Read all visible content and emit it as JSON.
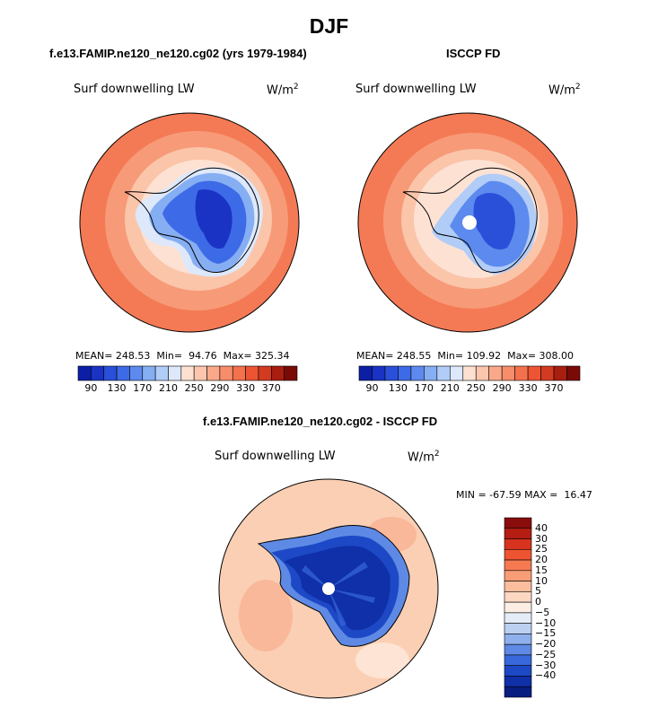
{
  "title": "DJF",
  "panels": [
    {
      "id": "model",
      "header": "f.e13.FAMIP.ne120_ne120.cg02 (yrs 1979-1984)",
      "left_label": "Surf downwelling LW",
      "units": "W/m",
      "units_exp": "2",
      "stats": "MEAN= 248.53  Min=  94.76  Max= 325.34"
    },
    {
      "id": "obs",
      "header": "ISCCP FD",
      "left_label": "Surf downwelling LW",
      "units": "W/m",
      "units_exp": "2",
      "stats": "MEAN= 248.55  Min= 109.92  Max= 308.00"
    },
    {
      "id": "diff",
      "header": "f.e13.FAMIP.ne120_ne120.cg02 - ISCCP FD",
      "left_label": "Surf downwelling LW",
      "units": "W/m",
      "units_exp": "2",
      "stats": "MIN = -67.59 MAX =  16.47"
    }
  ],
  "chart_data": [
    {
      "type": "heatmap",
      "title": "f.e13.FAMIP.ne120_ne120.cg02 (yrs 1979-1984)",
      "projection": "south polar stereographic",
      "variable": "Surf downwelling LW",
      "units": "W/m^2",
      "mean": 248.53,
      "min": 94.76,
      "max": 325.34,
      "colorbar": {
        "orientation": "horizontal",
        "tick_labels": [
          "90",
          "130",
          "170",
          "210",
          "250",
          "290",
          "330",
          "370"
        ],
        "colors": [
          "#0d1ea6",
          "#1a33c4",
          "#2a4fd9",
          "#3d6ae6",
          "#5c8aee",
          "#86aef3",
          "#b0ccf7",
          "#dde8fb",
          "#fde0d0",
          "#fbc6ad",
          "#f9a98a",
          "#f78d6b",
          "#f4714e",
          "#ec5434",
          "#d23b21",
          "#a81e10",
          "#7a0a06"
        ]
      }
    },
    {
      "type": "heatmap",
      "title": "ISCCP FD",
      "projection": "south polar stereographic",
      "variable": "Surf downwelling LW",
      "units": "W/m^2",
      "mean": 248.55,
      "min": 109.92,
      "max": 308.0,
      "colorbar": {
        "orientation": "horizontal",
        "tick_labels": [
          "90",
          "130",
          "170",
          "210",
          "250",
          "290",
          "330",
          "370"
        ]
      }
    },
    {
      "type": "heatmap",
      "title": "f.e13.FAMIP.ne120_ne120.cg02 - ISCCP FD",
      "projection": "south polar stereographic",
      "variable": "Surf downwelling LW",
      "units": "W/m^2",
      "min": -67.59,
      "max": 16.47,
      "colorbar": {
        "orientation": "vertical",
        "tick_labels": [
          "40",
          "30",
          "25",
          "20",
          "15",
          "10",
          "5",
          "0",
          "−5",
          "−10",
          "−15",
          "−20",
          "−25",
          "−30",
          "−40"
        ],
        "colors": [
          "#8a0c0c",
          "#b51d12",
          "#d8331e",
          "#ee5431",
          "#f57a52",
          "#f89d76",
          "#fbbd9c",
          "#fcd8c2",
          "#fdeee4",
          "#e4ecf8",
          "#bcd0f2",
          "#8fb0ec",
          "#5e8ae5",
          "#3868db",
          "#1d49c6",
          "#0f30a8",
          "#071d80"
        ]
      }
    }
  ]
}
